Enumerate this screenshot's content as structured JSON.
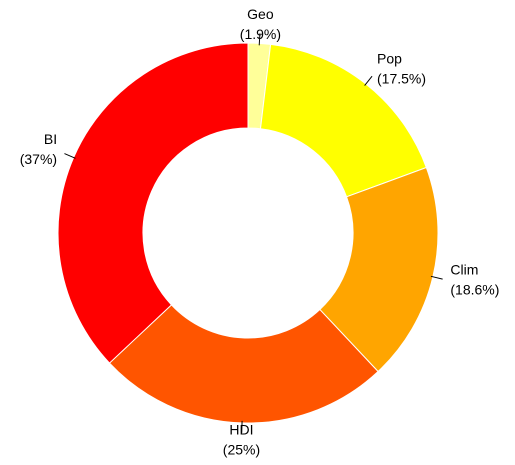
{
  "chart_data": {
    "type": "donut",
    "categories": [
      "Geo",
      "Pop",
      "Clim",
      "HDI",
      "BI"
    ],
    "values": [
      1.9,
      17.5,
      18.6,
      25,
      37
    ],
    "value_labels": [
      "(1.9%)",
      "(17.5%)",
      "(18.6%)",
      "(25%)",
      "(37%)"
    ],
    "colors": [
      "#ffff99",
      "#ffff00",
      "#ffa500",
      "#ff5500",
      "#ff0000"
    ]
  }
}
